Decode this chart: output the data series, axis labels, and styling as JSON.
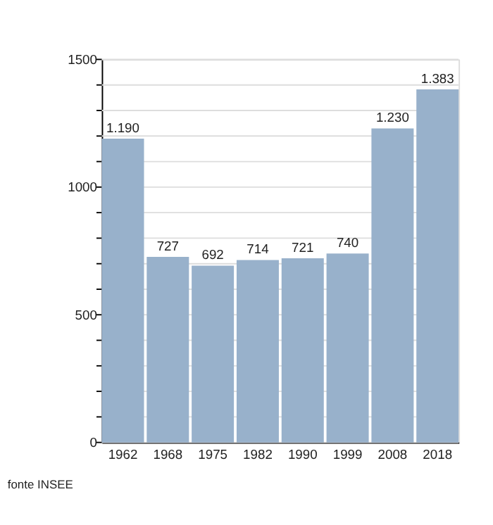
{
  "chart_data": {
    "type": "bar",
    "categories": [
      "1962",
      "1968",
      "1975",
      "1982",
      "1990",
      "1999",
      "2008",
      "2018"
    ],
    "values": [
      1190,
      727,
      692,
      714,
      721,
      740,
      1230,
      1383
    ],
    "value_labels": [
      "1.190",
      "727",
      "692",
      "714",
      "721",
      "740",
      "1.230",
      "1.383"
    ],
    "color": "#98b1cb",
    "ylim": [
      0,
      1500
    ],
    "yticks": [
      0,
      {
        "value": 100,
        "label": null
      },
      {
        "value": 200,
        "label": null
      },
      {
        "value": 300,
        "label": null
      },
      {
        "value": 400,
        "label": null
      },
      500,
      {
        "value": 600,
        "label": null
      },
      {
        "value": 700,
        "label": null
      },
      {
        "value": 800,
        "label": null
      },
      {
        "value": 900,
        "label": null
      },
      1000,
      {
        "value": 1100,
        "label": null
      },
      {
        "value": 1200,
        "label": null
      },
      {
        "value": 1300,
        "label": null
      },
      {
        "value": 1400,
        "label": null
      },
      1500
    ],
    "grid": "y",
    "annotations": [
      "fonte INSEE"
    ]
  }
}
